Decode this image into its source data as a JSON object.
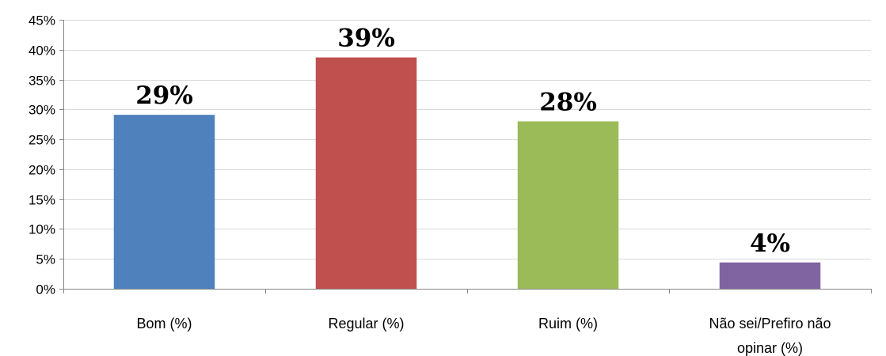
{
  "chart_data": {
    "type": "bar",
    "categories": [
      "Bom (%)",
      "Regular (%)",
      "Ruim (%)",
      "Não sei/Prefiro não opinar (%)"
    ],
    "category_lines": [
      [
        "Bom (%)"
      ],
      [
        "Regular (%)"
      ],
      [
        "Ruim (%)"
      ],
      [
        "Não sei/Prefiro não",
        "opinar (%)"
      ]
    ],
    "values": [
      29,
      39,
      28,
      4
    ],
    "bar_values": [
      29.1,
      38.7,
      28.0,
      4.4
    ],
    "data_labels": [
      "29%",
      "39%",
      "28%",
      "4%"
    ],
    "colors": [
      "#4f81bd",
      "#c0504d",
      "#9bbb59",
      "#8064a2"
    ],
    "ylim": [
      0,
      45
    ],
    "y_ticks": [
      "0%",
      "5%",
      "10%",
      "15%",
      "20%",
      "25%",
      "30%",
      "35%",
      "40%",
      "45%"
    ],
    "grid": true,
    "title": "",
    "xlabel": "",
    "ylabel": ""
  }
}
